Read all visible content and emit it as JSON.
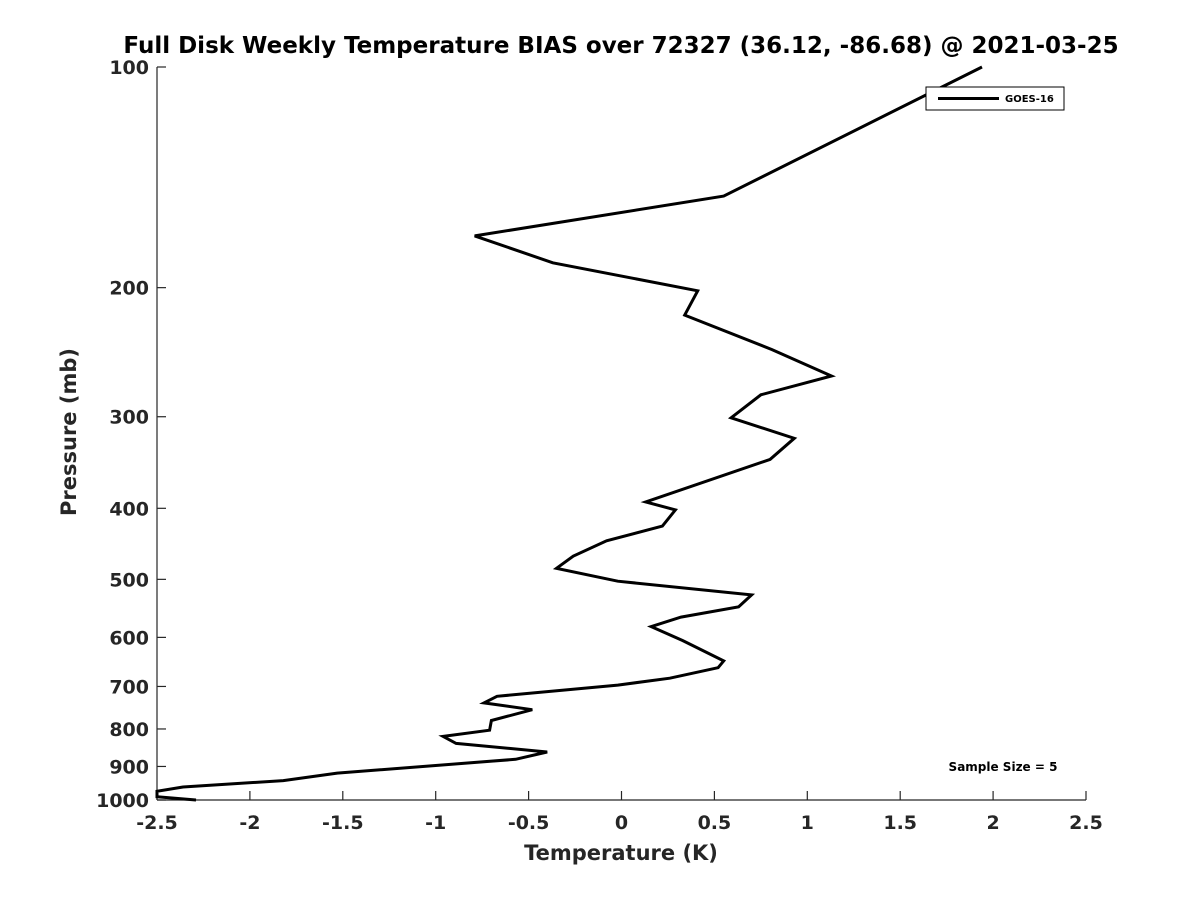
{
  "chart_data": {
    "type": "line",
    "title": "Full Disk Weekly Temperature BIAS over 72327 (36.12, -86.68) @ 2021-03-25",
    "xlabel": "Temperature (K)",
    "ylabel": "Pressure (mb)",
    "xlim": [
      -2.5,
      2.5
    ],
    "ylim": [
      100,
      1000
    ],
    "y_scale": "log",
    "y_reversed": true,
    "x_ticks": [
      "-2.5",
      "-2",
      "-1.5",
      "-1",
      "-0.5",
      "0",
      "0.5",
      "1",
      "1.5",
      "2",
      "2.5"
    ],
    "y_ticks": [
      "100",
      "200",
      "300",
      "400",
      "500",
      "600",
      "700",
      "800",
      "900",
      "1000"
    ],
    "legend": {
      "entries": [
        "GOES-16"
      ],
      "placement": "top-right"
    },
    "annotation": "Sample Size = 5",
    "grid": false,
    "series": [
      {
        "name": "GOES-16",
        "color": "#000000",
        "points": [
          [
            1.94,
            100
          ],
          [
            0.55,
            150
          ],
          [
            -0.79,
            170
          ],
          [
            -0.37,
            185
          ],
          [
            0.41,
            202
          ],
          [
            0.34,
            218
          ],
          [
            0.81,
            243
          ],
          [
            1.13,
            264
          ],
          [
            0.75,
            280
          ],
          [
            0.59,
            301
          ],
          [
            0.93,
            321
          ],
          [
            0.8,
            343
          ],
          [
            0.13,
            392
          ],
          [
            0.29,
            402
          ],
          [
            0.22,
            423
          ],
          [
            -0.08,
            443
          ],
          [
            -0.26,
            465
          ],
          [
            -0.35,
            483
          ],
          [
            -0.02,
            503
          ],
          [
            0.7,
            525
          ],
          [
            0.63,
            545
          ],
          [
            0.32,
            563
          ],
          [
            0.16,
            580
          ],
          [
            0.33,
            606
          ],
          [
            0.55,
            646
          ],
          [
            0.52,
            660
          ],
          [
            0.26,
            682
          ],
          [
            -0.02,
            697
          ],
          [
            -0.67,
            722
          ],
          [
            -0.74,
            737
          ],
          [
            -0.48,
            753
          ],
          [
            -0.7,
            779
          ],
          [
            -0.71,
            803
          ],
          [
            -0.96,
            819
          ],
          [
            -0.89,
            837
          ],
          [
            -0.4,
            860
          ],
          [
            -0.57,
            880
          ],
          [
            -1.53,
            919
          ],
          [
            -1.82,
            941
          ],
          [
            -2.36,
            960
          ],
          [
            -2.5,
            973
          ],
          [
            -2.5,
            990
          ],
          [
            -2.29,
            1000
          ]
        ]
      }
    ]
  }
}
